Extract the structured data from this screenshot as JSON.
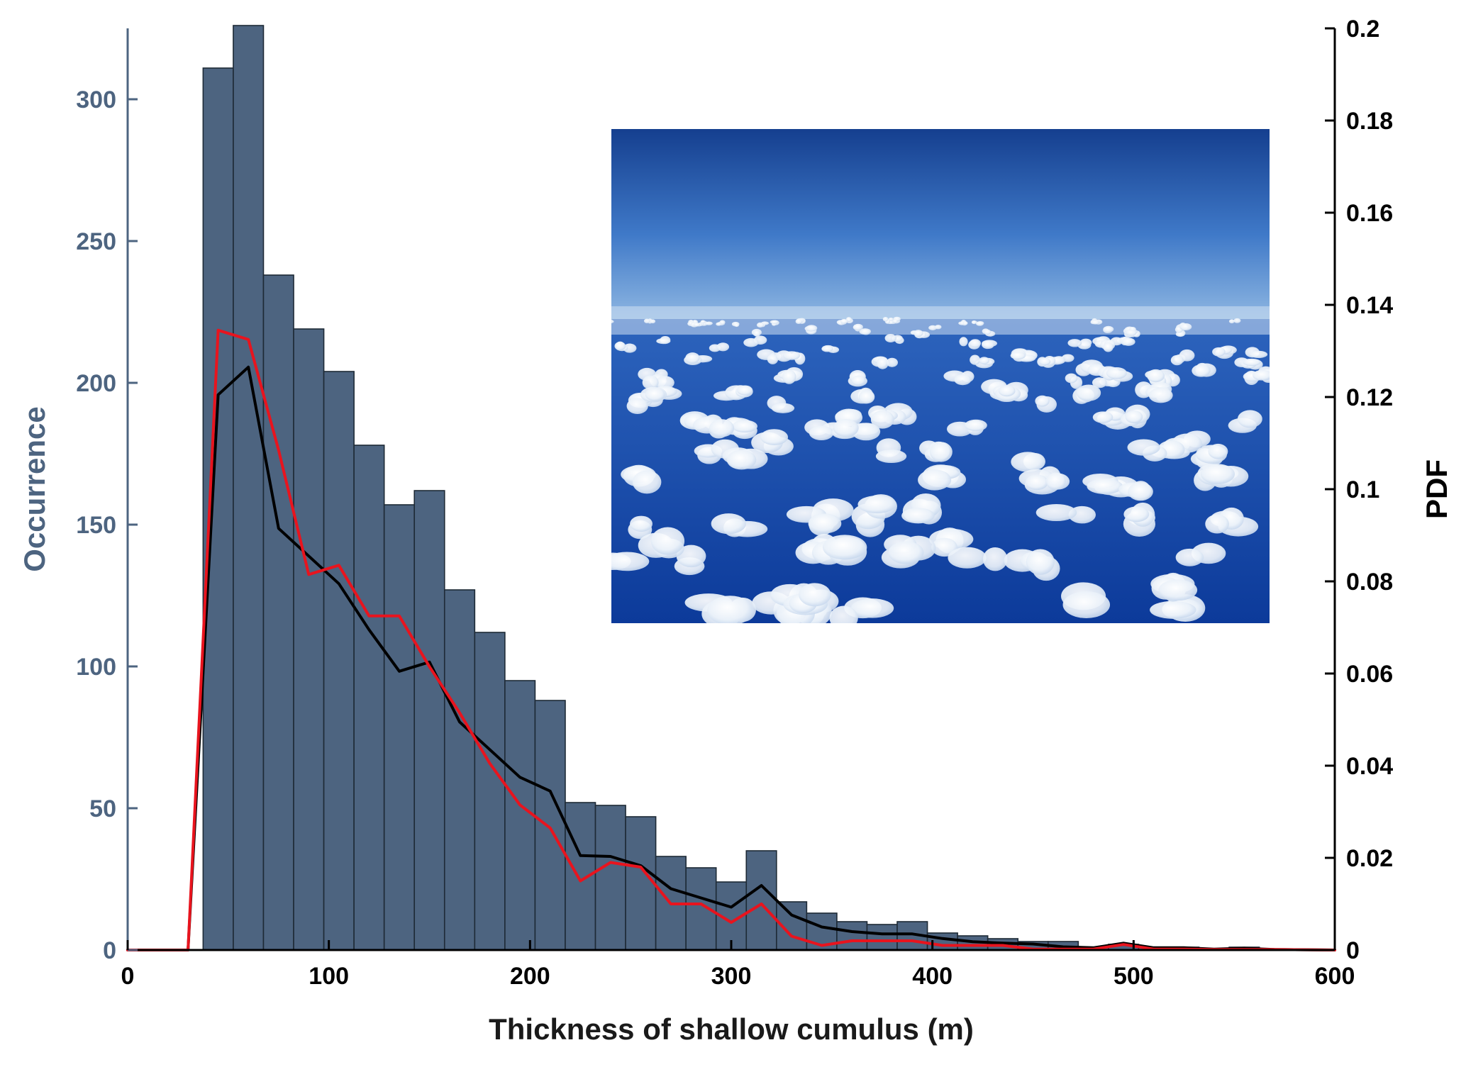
{
  "chart_data": {
    "type": "bar",
    "xlabel": "Thickness of shallow cumulus (m)",
    "ylabel": "Occurrence",
    "y2label": "PDF",
    "xlim": [
      0,
      600
    ],
    "ylim": [
      0,
      325
    ],
    "y2lim": [
      0,
      0.2
    ],
    "x_ticks": [
      "0",
      "100",
      "200",
      "300",
      "400",
      "500",
      "600"
    ],
    "y_ticks": [
      "0",
      "50",
      "100",
      "150",
      "200",
      "250",
      "300"
    ],
    "y2_ticks": [
      "0",
      "0.02",
      "0.04",
      "0.06",
      "0.08",
      "0.1",
      "0.12",
      "0.14",
      "0.16",
      "0.18",
      "0.2"
    ],
    "grid": false,
    "histogram": {
      "bin_edges": [
        0,
        7.5,
        15,
        22.5,
        30,
        37.5,
        52.5,
        67.5,
        82.5,
        97.5,
        112.5,
        127.5,
        142.5,
        157.5,
        172.5,
        187.5,
        202.5,
        217.5,
        232.5,
        247.5,
        262.5,
        277.5,
        292.5,
        307.5,
        322.5,
        337.5,
        352.5,
        367.5,
        382.5,
        397.5,
        412.5,
        427.5,
        442.5,
        457.5,
        472.5,
        487.5,
        502.5,
        517.5,
        532.5,
        547.5,
        562.5,
        577.5,
        592.5
      ],
      "counts": [
        0,
        0,
        0,
        0,
        0,
        311,
        326,
        238,
        219,
        204,
        178,
        157,
        162,
        127,
        112,
        95,
        88,
        52,
        51,
        47,
        33,
        29,
        24,
        35,
        17,
        13,
        10,
        9,
        10,
        6,
        5,
        4,
        3,
        3,
        1,
        2,
        1,
        1,
        0,
        1,
        0,
        0
      ],
      "color": "#4d6480",
      "edge_color": "#1e2a36"
    },
    "series": [
      {
        "color": "#000000",
        "x": [
          0,
          30,
          45,
          60,
          75,
          90,
          105,
          120,
          135,
          150,
          165,
          180,
          195,
          210,
          225,
          240,
          255,
          270,
          285,
          300,
          315,
          330,
          345,
          360,
          375,
          390,
          405,
          420,
          435,
          450,
          465,
          480,
          495,
          510,
          525,
          540,
          555,
          570,
          600
        ],
        "y": [
          0,
          0,
          0.1205,
          0.1265,
          0.0915,
          0.0855,
          0.0795,
          0.0695,
          0.0605,
          0.0625,
          0.0495,
          0.0435,
          0.0375,
          0.0345,
          0.0205,
          0.0203,
          0.0183,
          0.0133,
          0.0113,
          0.0093,
          0.014,
          0.0076,
          0.005,
          0.004,
          0.0035,
          0.0035,
          0.0025,
          0.0018,
          0.0015,
          0.0013,
          0.0007,
          0.0005,
          0.0015,
          0.0005,
          0.0005,
          0.0002,
          0.0004,
          0.0001,
          0
        ]
      },
      {
        "color": "#e8141e",
        "x": [
          0,
          30,
          45,
          60,
          75,
          90,
          105,
          120,
          135,
          150,
          165,
          180,
          195,
          210,
          225,
          240,
          255,
          270,
          285,
          300,
          315,
          330,
          345,
          360,
          375,
          390,
          405,
          420,
          435,
          450,
          465,
          480,
          495,
          510,
          525,
          540,
          555,
          570,
          600
        ],
        "y": [
          0,
          0,
          0.1345,
          0.1325,
          0.1085,
          0.0815,
          0.0835,
          0.0725,
          0.0725,
          0.0615,
          0.0515,
          0.0405,
          0.0315,
          0.0265,
          0.015,
          0.019,
          0.018,
          0.01,
          0.01,
          0.006,
          0.01,
          0.003,
          0.001,
          0.002,
          0.002,
          0.002,
          0.001,
          0.001,
          0.001,
          0.0002,
          0.0002,
          0.0002,
          0.0012,
          0.0002,
          0.0002,
          0.0001,
          0.0001,
          0.0001,
          0
        ]
      }
    ],
    "axis_colors": {
      "left": "#4d6480",
      "right": "#000000",
      "bottom": "#000000"
    }
  },
  "inset_photo": {
    "subject": "aerial-view-of-shallow-cumulus-over-ocean",
    "sky_top": "#153f8f",
    "sky_mid": "#3f79c8",
    "horizon": "#8fb7e2",
    "ocean_top": "#2d64bd",
    "ocean_bottom": "#0c3a9a",
    "cloud_color": "#f4f8fc"
  }
}
